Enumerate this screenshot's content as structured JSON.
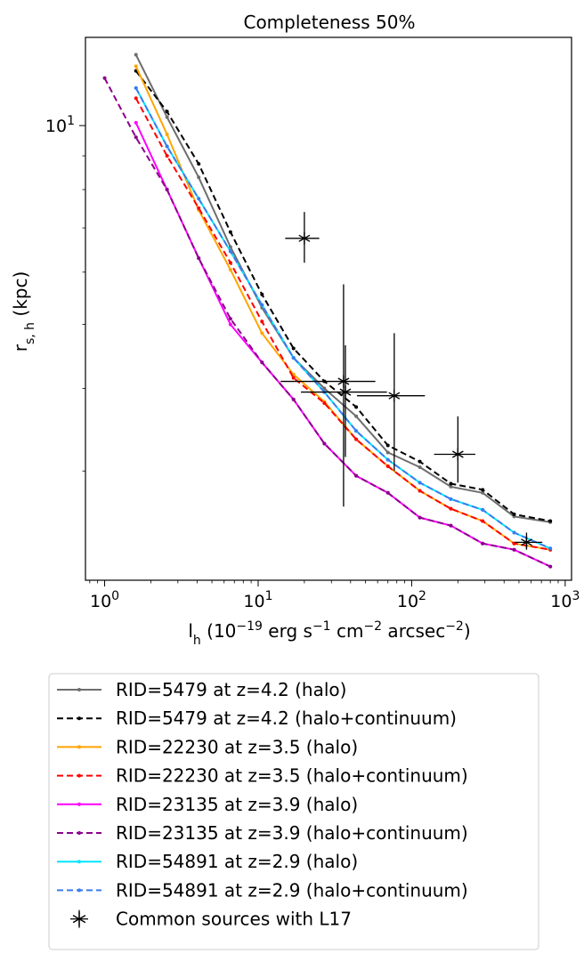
{
  "chart_data": {
    "type": "line",
    "title": "Completeness 50%",
    "xlabel": "l_h (10^-19 erg s^-1 cm^-2 arcsec^-2)",
    "ylabel": "r_s,h (kpc)",
    "xscale": "log",
    "yscale": "log",
    "xlim": [
      0.75,
      1100
    ],
    "ylim": [
      2.05,
      13.6
    ],
    "x_tick_labels": [
      "10^0",
      "10^1",
      "10^2",
      "10^3"
    ],
    "y_tick_labels": [
      "10^1"
    ],
    "grid": false,
    "legend_position": "below",
    "series": [
      {
        "name": "RID=5479 at z=4.2 (halo)",
        "color": "#6e6e6e",
        "dash": "solid",
        "x": [
          1.6,
          2.55,
          4.1,
          6.6,
          10.6,
          17,
          27,
          43.5,
          70,
          113,
          180,
          290,
          465,
          800
        ],
        "y": [
          12.8,
          10.3,
          8.35,
          6.55,
          5.3,
          4.45,
          4.0,
          3.63,
          3.2,
          3.04,
          2.84,
          2.78,
          2.56,
          2.51
        ]
      },
      {
        "name": "RID=5479 at z=4.2 (halo+continuum)",
        "color": "#000000",
        "dash": "dashed",
        "x": [
          1.6,
          2.55,
          4.1,
          6.6,
          10.6,
          17,
          27,
          43.5,
          70,
          113,
          180,
          290,
          465,
          800
        ],
        "y": [
          12.1,
          10.5,
          8.75,
          6.9,
          5.55,
          4.6,
          4.1,
          3.75,
          3.28,
          3.1,
          2.87,
          2.81,
          2.58,
          2.52
        ]
      },
      {
        "name": "RID=22230 at z=3.5 (halo)",
        "color": "#ffa500",
        "dash": "solid",
        "x": [
          1.6,
          2.55,
          4.1,
          6.6,
          10.6,
          17,
          27,
          43.5,
          70,
          113,
          180,
          290,
          465,
          800
        ],
        "y": [
          12.3,
          9.7,
          7.45,
          6.05,
          4.85,
          4.2,
          3.82,
          3.35,
          3.05,
          2.8,
          2.63,
          2.52,
          2.33,
          2.28
        ]
      },
      {
        "name": "RID=22230 at z=3.5 (halo+continuum)",
        "color": "#ff0000",
        "dash": "dashed",
        "x": [
          1.6,
          2.55,
          4.1,
          6.6,
          10.6,
          17,
          27,
          43.5,
          70,
          113,
          180,
          290,
          465,
          800
        ],
        "y": [
          11.0,
          9.0,
          7.5,
          6.2,
          5.05,
          4.15,
          3.8,
          3.35,
          3.05,
          2.8,
          2.63,
          2.52,
          2.33,
          2.28
        ]
      },
      {
        "name": "RID=23135 at z=3.9 (halo)",
        "color": "#ff00ff",
        "dash": "solid",
        "x": [
          1.6,
          2.55,
          4.1,
          6.6,
          10.6,
          17,
          27,
          43.5,
          70,
          113,
          180,
          290,
          465,
          800
        ],
        "y": [
          10.1,
          8.0,
          6.3,
          5.0,
          4.38,
          3.85,
          3.3,
          2.95,
          2.78,
          2.55,
          2.48,
          2.33,
          2.28,
          2.15
        ]
      },
      {
        "name": "RID=23135 at z=3.9 (halo+continuum)",
        "color": "#8b008b",
        "dash": "dashed",
        "x": [
          1.0,
          1.6,
          2.55,
          4.1,
          6.6,
          10.6,
          17,
          27,
          43.5,
          70,
          113,
          180,
          290,
          465,
          800
        ],
        "y": [
          11.8,
          9.6,
          8.0,
          6.3,
          5.1,
          4.38,
          3.85,
          3.3,
          2.95,
          2.78,
          2.55,
          2.48,
          2.33,
          2.28,
          2.15
        ]
      },
      {
        "name": "RID=54891 at z=2.9 (halo)",
        "color": "#00e5ff",
        "dash": "solid",
        "x": [
          1.6,
          2.55,
          4.1,
          6.6,
          10.6,
          17,
          27,
          43.5,
          70,
          113,
          180,
          290,
          465,
          800
        ],
        "y": [
          11.4,
          9.3,
          7.75,
          6.45,
          5.35,
          4.45,
          3.95,
          3.45,
          3.12,
          2.88,
          2.72,
          2.62,
          2.42,
          2.29
        ]
      },
      {
        "name": "RID=54891 at z=2.9 (halo+continuum)",
        "color": "#3a7bf0",
        "dash": "dashed",
        "x": [
          1.6,
          2.55,
          4.1,
          6.6,
          10.6,
          17,
          27,
          43.5,
          70,
          113,
          180,
          290,
          465,
          800
        ],
        "y": [
          11.4,
          9.3,
          7.75,
          6.45,
          5.35,
          4.45,
          3.95,
          3.45,
          3.12,
          2.88,
          2.72,
          2.62,
          2.42,
          2.29
        ]
      }
    ],
    "points": {
      "name": "Common sources with L17",
      "color": "#000000",
      "marker": "star",
      "data": [
        {
          "x": 20,
          "y": 6.75,
          "xerr": [
            5,
            5
          ],
          "yerr": [
            0.55,
            0.65
          ]
        },
        {
          "x": 36,
          "y": 4.1,
          "xerr": [
            22,
            22
          ],
          "yerr": [
            1.45,
            1.65
          ]
        },
        {
          "x": 37,
          "y": 3.95,
          "xerr": [
            18,
            32
          ],
          "yerr": [
            0.8,
            0.7
          ]
        },
        {
          "x": 77,
          "y": 3.9,
          "xerr": [
            33,
            45
          ],
          "yerr": [
            0.9,
            0.95
          ]
        },
        {
          "x": 200,
          "y": 3.18,
          "xerr": [
            60,
            60
          ],
          "yerr": [
            0.3,
            0.45
          ]
        },
        {
          "x": 560,
          "y": 2.34,
          "xerr": [
            90,
            150
          ],
          "yerr": [
            0.06,
            0.08
          ]
        }
      ]
    },
    "legend": [
      "RID=5479 at z=4.2 (halo)",
      "RID=5479 at z=4.2 (halo+continuum)",
      "RID=22230 at z=3.5 (halo)",
      "RID=22230 at z=3.5 (halo+continuum)",
      "RID=23135 at z=3.9 (halo)",
      "RID=23135 at z=3.9 (halo+continuum)",
      "RID=54891 at z=2.9 (halo)",
      "RID=54891 at z=2.9 (halo+continuum)",
      "Common sources with L17"
    ]
  }
}
